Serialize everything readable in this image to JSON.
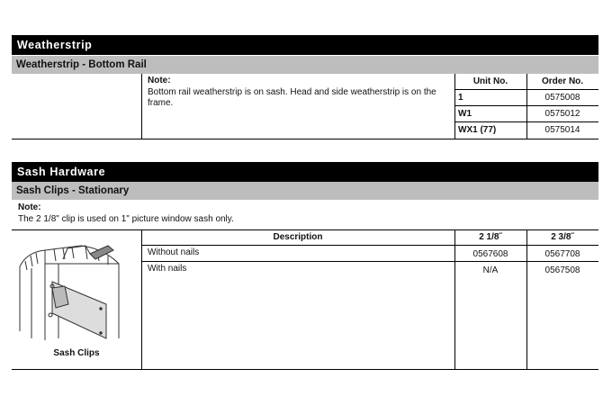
{
  "weatherstrip": {
    "title": "Weatherstrip",
    "subtitle": "Weatherstrip - Bottom Rail",
    "note_label": "Note:",
    "note_text": "Bottom rail weatherstrip is on sash. Head and side weatherstrip is on the frame.",
    "headers": {
      "unit": "Unit No.",
      "order": "Order No."
    },
    "rows": [
      {
        "unit": "1",
        "order": "0575008"
      },
      {
        "unit": "W1",
        "order": "0575012"
      },
      {
        "unit": "WX1 (77)",
        "order": "0575014"
      }
    ]
  },
  "sash": {
    "title": "Sash Hardware",
    "subtitle": "Sash Clips - Stationary",
    "note_label": "Note:",
    "note_text": "The 2 1/8\" clip is used on 1\" picture window sash only.",
    "image_caption": "Sash Clips",
    "headers": {
      "description": "Description",
      "size1": "2 1/8˝",
      "size2": "2 3/8˝"
    },
    "rows": [
      {
        "description": "Without nails",
        "size1": "0567608",
        "size2": "0567708"
      },
      {
        "description": "With nails",
        "size1": "N/A",
        "size2": "0567508"
      }
    ]
  }
}
